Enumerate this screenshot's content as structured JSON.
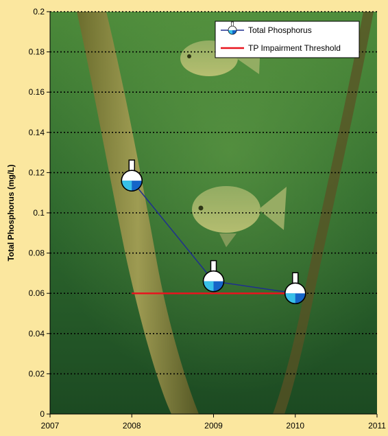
{
  "chart_data": {
    "type": "line",
    "title": "",
    "xlabel": "",
    "ylabel": "Total Phosphorus (mg/L)",
    "xlim": [
      2007,
      2011
    ],
    "ylim": [
      0,
      0.2
    ],
    "x_ticks": [
      "2007",
      "2008",
      "2009",
      "2010",
      "2011"
    ],
    "y_ticks": [
      "0",
      "0.02",
      "0.04",
      "0.06",
      "0.08",
      "0.1",
      "0.12",
      "0.14",
      "0.16",
      "0.18",
      "0.2"
    ],
    "grid": "horizontal dotted",
    "legend_position": "top-right",
    "background": "underwater photo with fish and weed stalks",
    "series": [
      {
        "name": "Total Phosphorus",
        "color": "#1f2f8f",
        "marker": "flask-icon",
        "x": [
          2008,
          2009,
          2010
        ],
        "y": [
          0.116,
          0.066,
          0.06
        ]
      },
      {
        "name": "TP Impairment Threshold",
        "color": "#e8141e",
        "x": [
          2008,
          2010
        ],
        "y": [
          0.06,
          0.06
        ]
      }
    ]
  }
}
